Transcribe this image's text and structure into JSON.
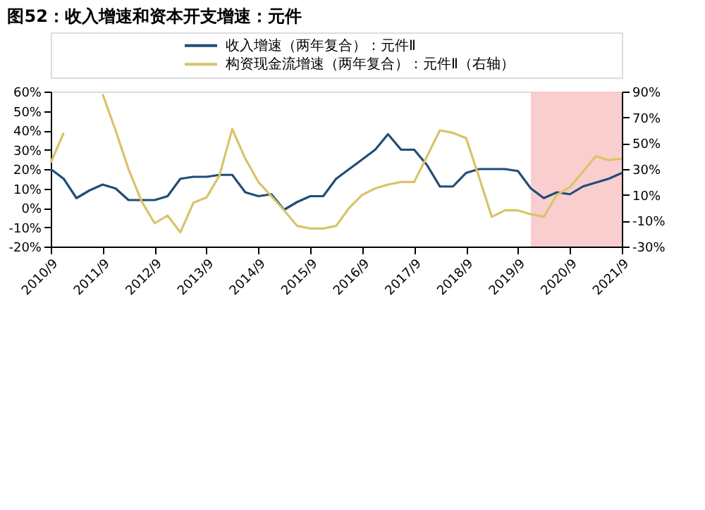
{
  "chart_data": {
    "type": "line",
    "title": "图52：收入增速和资本开支增速：元件",
    "x": [
      "2010-09",
      "2010-12",
      "2011-03",
      "2011-06",
      "2011-09",
      "2011-12",
      "2012-03",
      "2012-06",
      "2012-09",
      "2012-12",
      "2013-03",
      "2013-06",
      "2013-09",
      "2013-12",
      "2014-03",
      "2014-06",
      "2014-09",
      "2014-12",
      "2015-03",
      "2015-06",
      "2015-09",
      "2015-12",
      "2016-03",
      "2016-06",
      "2016-09",
      "2016-12",
      "2017-03",
      "2017-06",
      "2017-09",
      "2017-12",
      "2018-03",
      "2018-06",
      "2018-09",
      "2018-12",
      "2019-03",
      "2019-06",
      "2019-09",
      "2019-12",
      "2020-03",
      "2020-06",
      "2020-09",
      "2020-12",
      "2021-03",
      "2021-06",
      "2021-09"
    ],
    "series": [
      {
        "name": "收入增速（两年复合）：元件Ⅱ",
        "color": "#1f4e79",
        "values": [
          20,
          15,
          5,
          9,
          12,
          10,
          4,
          4,
          4,
          6,
          15,
          16,
          16,
          17,
          17,
          8,
          6,
          7,
          -1,
          3,
          6,
          6,
          15,
          20,
          25,
          30,
          38,
          30,
          30,
          22,
          11,
          11,
          18,
          20,
          20,
          20,
          19,
          10,
          5,
          8,
          7,
          11,
          13,
          15,
          18
        ]
      },
      {
        "name": "构资现金流增速（两年复合）：元件Ⅱ（右轴）",
        "color": "#d9c36a",
        "axis": "y2",
        "values": [
          35,
          58,
          null,
          null,
          88,
          60,
          30,
          5,
          -12,
          -6,
          -19,
          4,
          8,
          25,
          61,
          38,
          20,
          9,
          -2,
          -14,
          -16,
          -16,
          -14,
          0,
          10,
          15,
          18,
          20,
          20,
          40,
          60,
          58,
          54,
          24,
          -7,
          -2,
          -2,
          -5,
          -7,
          10,
          16,
          28,
          40,
          37,
          38
        ]
      }
    ],
    "xlim": [
      "2010-09",
      "2021-09"
    ],
    "xticks": [
      {
        "value": "2010-09",
        "label": "2010/9"
      },
      {
        "value": "2011-09",
        "label": "2011/9"
      },
      {
        "value": "2012-09",
        "label": "2012/9"
      },
      {
        "value": "2013-09",
        "label": "2013/9"
      },
      {
        "value": "2014-09",
        "label": "2014/9"
      },
      {
        "value": "2015-09",
        "label": "2015/9"
      },
      {
        "value": "2016-09",
        "label": "2016/9"
      },
      {
        "value": "2017-09",
        "label": "2017/9"
      },
      {
        "value": "2018-09",
        "label": "2018/9"
      },
      {
        "value": "2019-09",
        "label": "2019/9"
      },
      {
        "value": "2020-09",
        "label": "2020/9"
      },
      {
        "value": "2021-09",
        "label": "2021/9"
      }
    ],
    "ylim": [
      -20,
      60
    ],
    "yticks": [
      {
        "value": -20,
        "label": "-20%"
      },
      {
        "value": -10,
        "label": "-10%"
      },
      {
        "value": 0,
        "label": "0%"
      },
      {
        "value": 10,
        "label": "10%"
      },
      {
        "value": 20,
        "label": "20%"
      },
      {
        "value": 30,
        "label": "30%"
      },
      {
        "value": 40,
        "label": "40%"
      },
      {
        "value": 50,
        "label": "50%"
      },
      {
        "value": 60,
        "label": "60%"
      }
    ],
    "y2lim": [
      -30,
      90
    ],
    "y2ticks": [
      {
        "value": -30,
        "label": "-30%"
      },
      {
        "value": -10,
        "label": "-10%"
      },
      {
        "value": 10,
        "label": "10%"
      },
      {
        "value": 30,
        "label": "30%"
      },
      {
        "value": 50,
        "label": "50%"
      },
      {
        "value": 70,
        "label": "70%"
      },
      {
        "value": 90,
        "label": "90%"
      }
    ],
    "bands": [
      {
        "axis": "x",
        "from": "2019-12",
        "to": "2021-09",
        "color": "#f9c9c9"
      }
    ],
    "legend": "top",
    "grid": false,
    "line_style": "solid",
    "marker": "none"
  }
}
